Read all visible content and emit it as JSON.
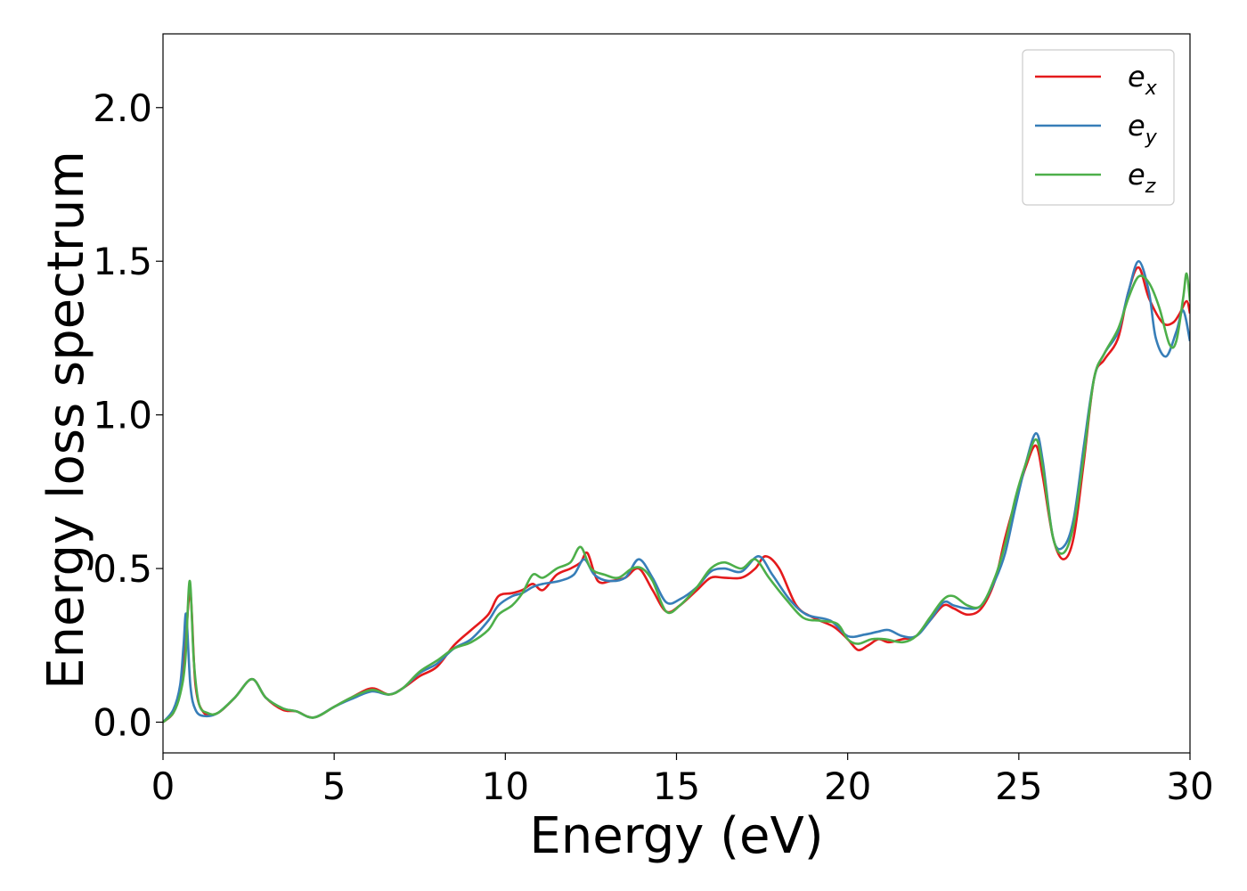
{
  "chart_data": {
    "type": "line",
    "title": "",
    "xlabel": "Energy (eV)",
    "ylabel": "Energy loss spectrum",
    "xlim": [
      0,
      30
    ],
    "ylim": [
      -0.1,
      2.24
    ],
    "xticks": [
      0,
      5,
      10,
      15,
      20,
      25,
      30
    ],
    "xtick_labels": [
      "0",
      "5",
      "10",
      "15",
      "20",
      "25",
      "30"
    ],
    "yticks": [
      0.0,
      0.5,
      1.0,
      1.5,
      2.0
    ],
    "ytick_labels": [
      "0.0",
      "0.5",
      "1.0",
      "1.5",
      "2.0"
    ],
    "grid": false,
    "legend_position": "top-right",
    "series": [
      {
        "name": "e",
        "subscript": "x",
        "color": "#e41a1c",
        "x": [
          0,
          0.3,
          0.5,
          0.65,
          0.8,
          0.95,
          1.2,
          1.6,
          2.1,
          2.6,
          3.0,
          3.5,
          3.9,
          4.4,
          5.0,
          5.5,
          6.1,
          6.6,
          7.0,
          7.5,
          8.0,
          8.5,
          9.0,
          9.5,
          9.8,
          10.2,
          10.5,
          10.8,
          11.1,
          11.5,
          11.9,
          12.2,
          12.4,
          12.7,
          13.1,
          13.5,
          13.9,
          14.3,
          14.7,
          15.1,
          15.6,
          16.0,
          16.4,
          16.9,
          17.3,
          17.6,
          18.0,
          18.5,
          19.0,
          19.6,
          20.0,
          20.3,
          20.6,
          20.9,
          21.2,
          21.6,
          22.0,
          22.4,
          22.8,
          23.1,
          23.5,
          23.9,
          24.3,
          24.6,
          24.9,
          25.2,
          25.5,
          25.7,
          26.0,
          26.3,
          26.6,
          26.9,
          27.2,
          27.5,
          27.9,
          28.2,
          28.5,
          28.8,
          29.2,
          29.5,
          29.7,
          29.9,
          30.0
        ],
        "y": [
          0.0,
          0.03,
          0.1,
          0.25,
          0.42,
          0.12,
          0.03,
          0.03,
          0.08,
          0.14,
          0.08,
          0.04,
          0.035,
          0.015,
          0.05,
          0.08,
          0.11,
          0.09,
          0.11,
          0.15,
          0.18,
          0.25,
          0.3,
          0.35,
          0.41,
          0.42,
          0.43,
          0.45,
          0.43,
          0.48,
          0.5,
          0.52,
          0.55,
          0.46,
          0.46,
          0.47,
          0.5,
          0.43,
          0.36,
          0.38,
          0.43,
          0.47,
          0.47,
          0.47,
          0.5,
          0.54,
          0.5,
          0.38,
          0.34,
          0.31,
          0.27,
          0.235,
          0.25,
          0.27,
          0.26,
          0.27,
          0.28,
          0.33,
          0.38,
          0.37,
          0.35,
          0.37,
          0.46,
          0.6,
          0.72,
          0.83,
          0.9,
          0.8,
          0.6,
          0.53,
          0.6,
          0.85,
          1.12,
          1.18,
          1.25,
          1.4,
          1.48,
          1.38,
          1.3,
          1.3,
          1.33,
          1.37,
          1.33
        ]
      },
      {
        "name": "e",
        "subscript": "y",
        "color": "#377eb8",
        "x": [
          0,
          0.3,
          0.5,
          0.6,
          0.68,
          0.8,
          0.95,
          1.2,
          1.6,
          2.1,
          2.6,
          3.0,
          3.5,
          3.9,
          4.4,
          5.0,
          5.5,
          6.1,
          6.6,
          7.0,
          7.5,
          8.0,
          8.5,
          9.0,
          9.5,
          9.8,
          10.2,
          10.5,
          10.8,
          11.1,
          11.6,
          12.0,
          12.3,
          12.6,
          13.0,
          13.5,
          13.9,
          14.3,
          14.7,
          15.1,
          15.6,
          16.0,
          16.4,
          16.9,
          17.4,
          17.8,
          18.3,
          18.8,
          19.5,
          20.0,
          20.5,
          20.9,
          21.2,
          21.6,
          22.0,
          22.4,
          22.8,
          23.1,
          23.5,
          23.9,
          24.3,
          24.6,
          24.9,
          25.2,
          25.5,
          25.7,
          26.0,
          26.3,
          26.6,
          26.9,
          27.2,
          27.5,
          27.9,
          28.2,
          28.5,
          28.8,
          29.0,
          29.3,
          29.6,
          29.8,
          30.0
        ],
        "y": [
          0.0,
          0.04,
          0.12,
          0.25,
          0.35,
          0.12,
          0.04,
          0.02,
          0.03,
          0.08,
          0.14,
          0.08,
          0.045,
          0.035,
          0.015,
          0.05,
          0.075,
          0.1,
          0.09,
          0.11,
          0.16,
          0.19,
          0.24,
          0.27,
          0.33,
          0.38,
          0.41,
          0.42,
          0.44,
          0.45,
          0.46,
          0.48,
          0.53,
          0.48,
          0.46,
          0.47,
          0.53,
          0.47,
          0.39,
          0.4,
          0.44,
          0.49,
          0.5,
          0.49,
          0.54,
          0.48,
          0.4,
          0.35,
          0.33,
          0.28,
          0.285,
          0.295,
          0.3,
          0.28,
          0.28,
          0.33,
          0.39,
          0.38,
          0.37,
          0.38,
          0.46,
          0.55,
          0.7,
          0.84,
          0.94,
          0.85,
          0.6,
          0.57,
          0.66,
          0.9,
          1.12,
          1.2,
          1.27,
          1.4,
          1.5,
          1.4,
          1.25,
          1.19,
          1.27,
          1.34,
          1.24
        ]
      },
      {
        "name": "e",
        "subscript": "z",
        "color": "#4daf4a",
        "x": [
          0,
          0.3,
          0.5,
          0.65,
          0.78,
          0.9,
          1.05,
          1.3,
          1.6,
          2.1,
          2.6,
          3.0,
          3.5,
          3.9,
          4.4,
          5.0,
          5.5,
          6.1,
          6.6,
          7.0,
          7.5,
          8.0,
          8.5,
          9.0,
          9.5,
          9.8,
          10.2,
          10.5,
          10.8,
          11.1,
          11.5,
          11.9,
          12.2,
          12.5,
          12.9,
          13.3,
          13.7,
          14.0,
          14.3,
          14.7,
          15.1,
          15.6,
          16.0,
          16.4,
          16.9,
          17.3,
          17.7,
          18.2,
          18.7,
          19.2,
          19.7,
          20.0,
          20.3,
          20.7,
          21.1,
          21.6,
          22.0,
          22.4,
          22.8,
          23.1,
          23.5,
          23.9,
          24.3,
          24.6,
          24.9,
          25.2,
          25.5,
          25.7,
          26.0,
          26.3,
          26.6,
          26.9,
          27.2,
          27.5,
          27.9,
          28.2,
          28.5,
          28.8,
          29.1,
          29.4,
          29.6,
          29.8,
          29.9,
          30.0
        ],
        "y": [
          0.0,
          0.03,
          0.09,
          0.2,
          0.46,
          0.2,
          0.06,
          0.03,
          0.03,
          0.08,
          0.14,
          0.08,
          0.045,
          0.035,
          0.015,
          0.05,
          0.08,
          0.105,
          0.09,
          0.11,
          0.165,
          0.2,
          0.24,
          0.26,
          0.3,
          0.35,
          0.38,
          0.42,
          0.48,
          0.47,
          0.5,
          0.52,
          0.57,
          0.5,
          0.48,
          0.47,
          0.5,
          0.5,
          0.46,
          0.36,
          0.38,
          0.44,
          0.5,
          0.52,
          0.5,
          0.53,
          0.47,
          0.4,
          0.34,
          0.33,
          0.32,
          0.27,
          0.255,
          0.27,
          0.27,
          0.26,
          0.28,
          0.34,
          0.4,
          0.41,
          0.38,
          0.38,
          0.47,
          0.58,
          0.73,
          0.84,
          0.92,
          0.83,
          0.6,
          0.55,
          0.64,
          0.87,
          1.12,
          1.2,
          1.28,
          1.38,
          1.45,
          1.43,
          1.35,
          1.23,
          1.24,
          1.38,
          1.46,
          1.37
        ]
      }
    ]
  }
}
